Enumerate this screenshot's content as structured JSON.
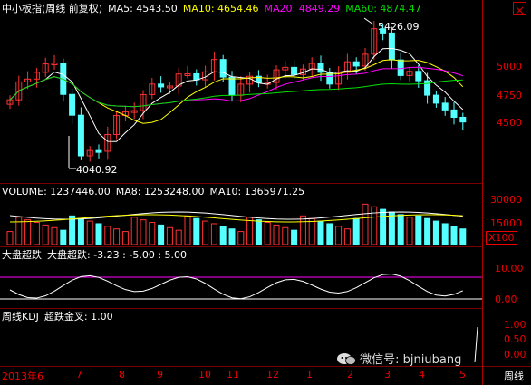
{
  "price_header": {
    "title": "中小板指(周线 前复权)",
    "ma5": "MA5: 4543.50",
    "ma10": "MA10: 4654.46",
    "ma20": "MA20: 4849.29",
    "ma60": "MA60: 4874.47"
  },
  "price_axis": [
    "5000",
    "4750",
    "4500"
  ],
  "annotations": {
    "high": "5426.09",
    "low": "4040.92"
  },
  "volume_header": {
    "volume": "VOLUME: 1237446.00",
    "ma8": "MA8: 1253248.00",
    "ma10": "MA10: 1365971.25"
  },
  "volume_axis": [
    "30000",
    "15000"
  ],
  "volume_unit": "X100",
  "indicator_header": {
    "name": "大盘超跌",
    "values": "大盘超跌: -3.23 : -5.00 : 5.00"
  },
  "indicator_axis": [
    "10.00",
    "0.00"
  ],
  "kdj_header": {
    "name": "周线KDJ",
    "signal": "超跌金叉: 1.00"
  },
  "kdj_axis": [
    "1.00",
    "0.50",
    "0.00"
  ],
  "x_axis": [
    "2013年6",
    "7",
    "8",
    "9",
    "10",
    "11",
    "12",
    "1",
    "2",
    "3",
    "4",
    "5"
  ],
  "period_label": "周线",
  "watermark": "微信号: bjniubang",
  "colors": {
    "up": "#ff3232",
    "down": "#54ffff",
    "ma5": "#ffffff",
    "ma10": "#ffff00",
    "ma20": "#ff00ff",
    "ma60": "#00e000",
    "grid": "#7a0000"
  }
}
